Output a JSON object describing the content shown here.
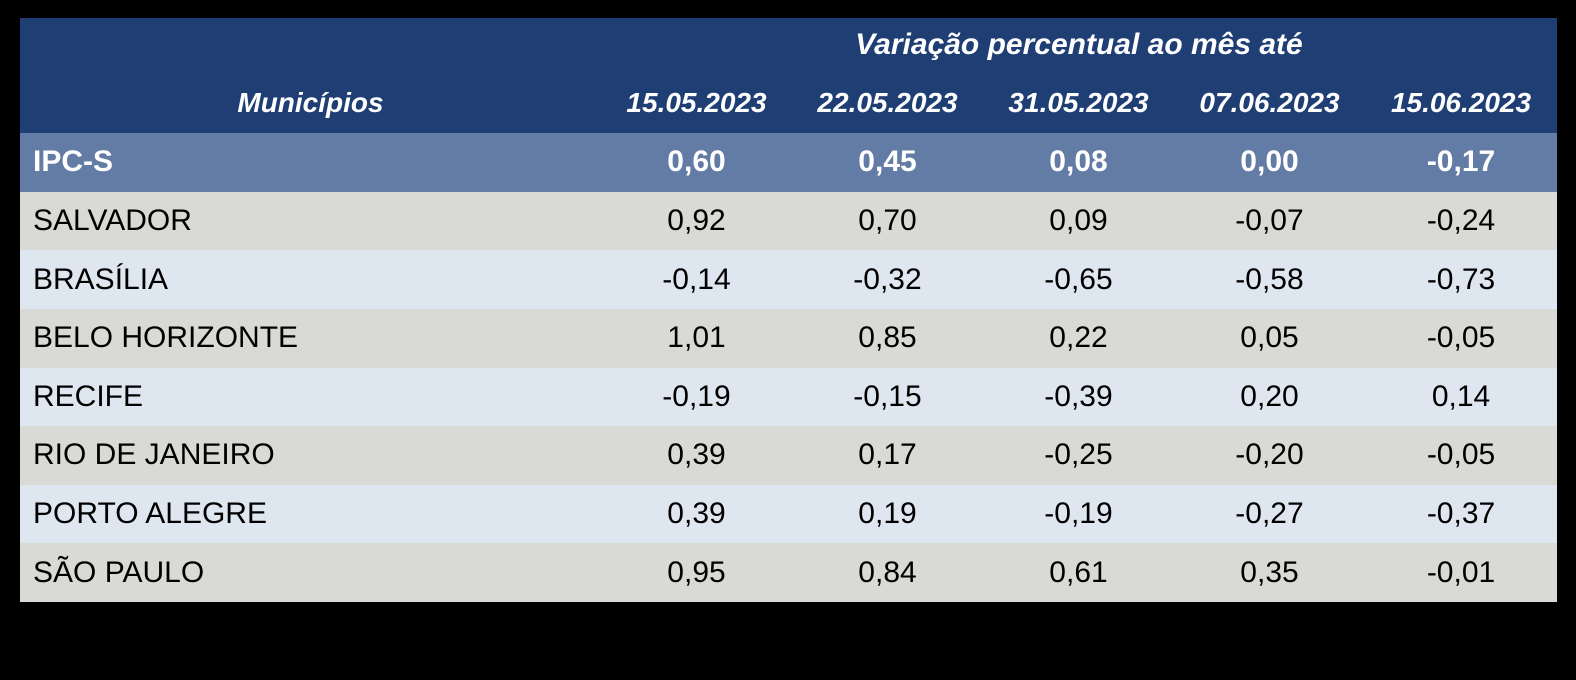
{
  "page": {
    "background_color": "#000000"
  },
  "colors": {
    "header_bg": "#1F3E74",
    "header_text": "#FFFFFF",
    "highlight_row_bg": "#637CA5",
    "highlight_row_text": "#FFFFFF",
    "row_gray_bg": "#D9D9D6",
    "row_blue_bg": "#DEE6EF",
    "body_text": "#000000"
  },
  "chart_data": {
    "type": "table",
    "title": "Variação percentual ao mês até",
    "row_header": "Municípios",
    "columns": [
      "15.05.2023",
      "22.05.2023",
      "31.05.2023",
      "07.06.2023",
      "15.06.2023"
    ],
    "rows": [
      {
        "label": "IPC-S",
        "highlight": true,
        "values": [
          "0,60",
          "0,45",
          "0,08",
          "0,00",
          "-0,17"
        ]
      },
      {
        "label": "SALVADOR",
        "highlight": false,
        "values": [
          "0,92",
          "0,70",
          "0,09",
          "-0,07",
          "-0,24"
        ]
      },
      {
        "label": "BRASÍLIA",
        "highlight": false,
        "values": [
          "-0,14",
          "-0,32",
          "-0,65",
          "-0,58",
          "-0,73"
        ]
      },
      {
        "label": "BELO HORIZONTE",
        "highlight": false,
        "values": [
          "1,01",
          "0,85",
          "0,22",
          "0,05",
          "-0,05"
        ]
      },
      {
        "label": "RECIFE",
        "highlight": false,
        "values": [
          "-0,19",
          "-0,15",
          "-0,39",
          "0,20",
          "0,14"
        ]
      },
      {
        "label": "RIO DE JANEIRO",
        "highlight": false,
        "values": [
          "0,39",
          "0,17",
          "-0,25",
          "-0,20",
          "-0,05"
        ]
      },
      {
        "label": "PORTO ALEGRE",
        "highlight": false,
        "values": [
          "0,39",
          "0,19",
          "-0,19",
          "-0,27",
          "-0,37"
        ]
      },
      {
        "label": "SÃO PAULO",
        "highlight": false,
        "values": [
          "0,95",
          "0,84",
          "0,61",
          "0,35",
          "-0,01"
        ]
      }
    ]
  }
}
